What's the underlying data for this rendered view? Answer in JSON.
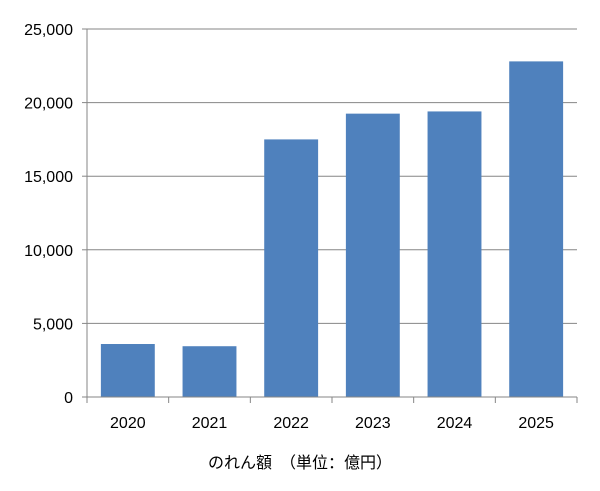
{
  "chart_data": {
    "type": "bar",
    "categories": [
      "2020",
      "2021",
      "2022",
      "2023",
      "2024",
      "2025"
    ],
    "values": [
      3600,
      3450,
      17500,
      19250,
      19400,
      22800
    ],
    "xlabel": "のれん額　（単位：億円）",
    "ylabel": "",
    "ylim": [
      0,
      25000
    ],
    "yticks": [
      "0",
      "5,000",
      "10,000",
      "15,000",
      "20,000",
      "25,000"
    ],
    "grid": true,
    "bar_color": "#4f81bd"
  }
}
